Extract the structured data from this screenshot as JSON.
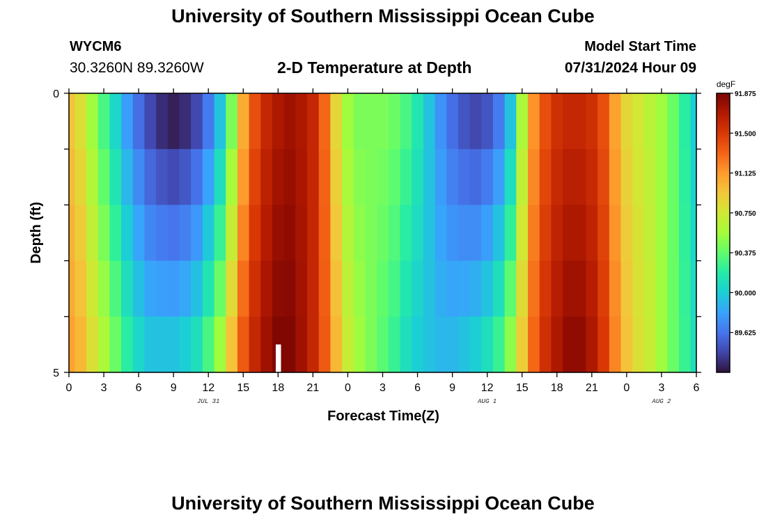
{
  "header": {
    "title": "University of Southern Mississippi Ocean Cube",
    "station": "WYCM6",
    "coordinates": "30.3260N  89.3260W",
    "subtitle": "2-D Temperature at Depth",
    "model_start_label": "Model Start Time",
    "model_start_value": "07/31/2024 Hour 09"
  },
  "footer": {
    "title": "University of Southern Mississippi Ocean Cube"
  },
  "colors": {
    "colormap": [
      "#30123b",
      "#4145ab",
      "#4675ed",
      "#39a2fc",
      "#1bcfd4",
      "#24eca6",
      "#61fc6c",
      "#a4fc3b",
      "#d1e834",
      "#f3c63a",
      "#fe9b2d",
      "#f36315",
      "#d93806",
      "#b11901",
      "#7a0402"
    ]
  },
  "chart_data": {
    "type": "heatmap",
    "title": "2-D Temperature at Depth",
    "xlabel": "Forecast Time(Z)",
    "ylabel": "Depth (ft)",
    "colorbar_label": "degF",
    "x_ticks": [
      "0",
      "3",
      "6",
      "9",
      "12",
      "15",
      "18",
      "21",
      "0",
      "3",
      "6",
      "9",
      "12",
      "15",
      "18",
      "21",
      "0",
      "3",
      "6"
    ],
    "date_labels": [
      {
        "label": "JUL 31",
        "at_hour": 12
      },
      {
        "label": "AUG 1",
        "at_hour": 36
      },
      {
        "label": "AUG 2",
        "at_hour": 51
      }
    ],
    "x_range_hours": [
      0,
      54
    ],
    "y_ticks": [
      "0",
      "5"
    ],
    "y_range": [
      0,
      5
    ],
    "depth_rows": 5,
    "colorbar_ticks": [
      "91.875",
      "91.500",
      "91.125",
      "90.750",
      "90.375",
      "90.000",
      "89.625"
    ],
    "value_range": [
      89.25,
      91.875
    ],
    "time_hours": [
      0,
      1,
      2,
      3,
      4,
      5,
      6,
      7,
      8,
      9,
      10,
      11,
      12,
      13,
      14,
      15,
      16,
      17,
      18,
      19,
      20,
      21,
      22,
      23,
      24,
      25,
      26,
      27,
      28,
      29,
      30,
      31,
      32,
      33,
      34,
      35,
      36,
      37,
      38,
      39,
      40,
      41,
      42,
      43,
      44,
      45,
      46,
      47,
      48,
      49,
      50,
      51,
      52,
      53,
      54
    ],
    "surface_values": [
      90.95,
      90.8,
      90.55,
      90.3,
      90.05,
      89.8,
      89.6,
      89.45,
      89.35,
      89.3,
      89.35,
      89.45,
      89.65,
      89.95,
      90.45,
      91.05,
      91.4,
      91.6,
      91.7,
      91.75,
      91.7,
      91.6,
      91.3,
      90.85,
      90.55,
      90.45,
      90.45,
      90.45,
      90.4,
      90.3,
      90.15,
      89.95,
      89.75,
      89.6,
      89.5,
      89.45,
      89.5,
      89.65,
      89.95,
      90.6,
      91.15,
      91.4,
      91.55,
      91.6,
      91.6,
      91.55,
      91.4,
      91.1,
      90.85,
      90.75,
      90.65,
      90.55,
      90.4,
      90.2,
      90.0
    ],
    "bottom_values": [
      91.1,
      91.0,
      90.8,
      90.6,
      90.4,
      90.2,
      90.05,
      89.95,
      89.95,
      89.95,
      90.0,
      90.1,
      90.3,
      90.55,
      90.95,
      91.35,
      91.6,
      91.75,
      91.85,
      91.85,
      91.75,
      91.6,
      91.35,
      91.0,
      90.7,
      90.55,
      90.45,
      90.35,
      90.25,
      90.1,
      90.0,
      89.95,
      89.9,
      89.9,
      89.95,
      90.0,
      90.1,
      90.25,
      90.5,
      90.9,
      91.3,
      91.55,
      91.7,
      91.8,
      91.8,
      91.7,
      91.5,
      91.2,
      90.95,
      90.8,
      90.7,
      90.55,
      90.4,
      90.25,
      90.1
    ],
    "missing_cells": [
      {
        "hour": 18,
        "depth_row": 4
      }
    ]
  }
}
